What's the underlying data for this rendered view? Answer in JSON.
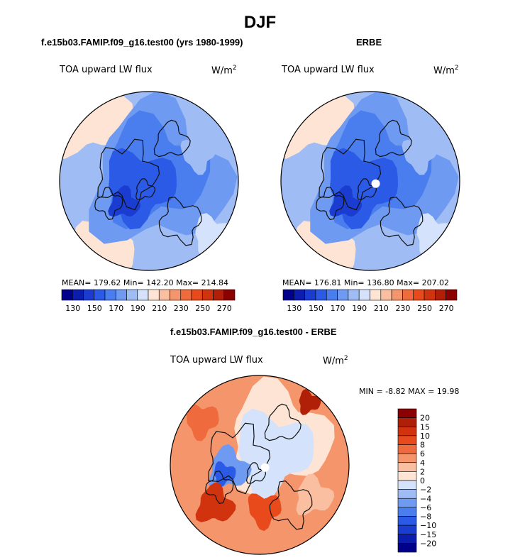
{
  "page_title": "DJF",
  "colors": {
    "blue_scale": [
      "#00008b",
      "#0b1dac",
      "#1a3cd0",
      "#2b5ae6",
      "#4a7ded",
      "#6e9af1",
      "#9fbcf5",
      "#d4e3fb"
    ],
    "red_scale": [
      "#fde4d4",
      "#f9bfa0",
      "#f4956b",
      "#ef6a3c",
      "#e84a1c",
      "#d1330f",
      "#b01f07",
      "#8b0000"
    ]
  },
  "chart_data": [
    {
      "type": "heatmap",
      "title": "f.e15b03.FAMIP.f09_g16.test00 (yrs 1980-1999)",
      "variable": "TOA upward LW flux",
      "units": "W/m",
      "units_sup": "2",
      "projection": "north polar stereographic",
      "stats_text": "MEAN= 179.62  Min= 142.20  Max= 214.84",
      "stats": {
        "mean": 179.62,
        "min": 142.2,
        "max": 214.84
      },
      "colorbar_levels": [
        130,
        140,
        150,
        160,
        170,
        180,
        190,
        200,
        210,
        220,
        230,
        240,
        250,
        260,
        270
      ],
      "colorbar_labels": [
        "130",
        "150",
        "170",
        "190",
        "210",
        "230",
        "250",
        "270"
      ]
    },
    {
      "type": "heatmap",
      "title": "ERBE",
      "variable": "TOA upward LW flux",
      "units": "W/m",
      "units_sup": "2",
      "projection": "north polar stereographic",
      "stats_text": "MEAN= 176.81  Min= 136.80  Max= 207.02",
      "stats": {
        "mean": 176.81,
        "min": 136.8,
        "max": 207.02
      },
      "colorbar_levels": [
        130,
        140,
        150,
        160,
        170,
        180,
        190,
        200,
        210,
        220,
        230,
        240,
        250,
        260,
        270
      ],
      "colorbar_labels": [
        "130",
        "150",
        "170",
        "190",
        "210",
        "230",
        "250",
        "270"
      ]
    },
    {
      "type": "heatmap",
      "title": "f.e15b03.FAMIP.f09_g16.test00 - ERBE",
      "variable": "TOA upward LW flux",
      "units": "W/m",
      "units_sup": "2",
      "projection": "north polar stereographic",
      "stats_text": "MIN =  -8.82 MAX =  19.98",
      "stats": {
        "min": -8.82,
        "max": 19.98
      },
      "colorbar_levels": [
        -20,
        -15,
        -10,
        -8,
        -6,
        -4,
        -2,
        0,
        2,
        4,
        6,
        8,
        10,
        15,
        20
      ],
      "colorbar_labels": [
        "20",
        "15",
        "10",
        "8",
        "6",
        "4",
        "2",
        "0",
        "−2",
        "−4",
        "−6",
        "−8",
        "−10",
        "−15",
        "−20"
      ]
    }
  ]
}
